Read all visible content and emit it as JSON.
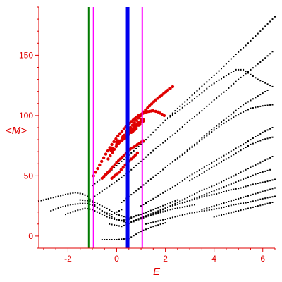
{
  "chart_data": {
    "type": "scatter",
    "title": "",
    "xlabel": "E",
    "ylabel": "<M>",
    "xlim": [
      -3.2,
      6.5
    ],
    "ylim": [
      -10,
      190
    ],
    "x_ticks": [
      -2,
      0,
      2,
      4,
      6
    ],
    "y_ticks": [
      0,
      50,
      100,
      150
    ],
    "grid": false,
    "legend": "none",
    "colors": {
      "axis": "#e00000",
      "black_points": "#000000",
      "red_points": "#e00000",
      "line_green": "#007a00",
      "line_magenta": "#ff00ff",
      "line_blue": "#0000ee"
    },
    "vertical_lines": [
      {
        "x": -1.15,
        "color": "#007a00",
        "width": 2
      },
      {
        "x": -0.95,
        "color": "#ff00ff",
        "width": 2
      },
      {
        "x": 0.45,
        "color": "#0000ee",
        "width": 5
      },
      {
        "x": 1.05,
        "color": "#ff00ff",
        "width": 2
      }
    ],
    "black_series": [
      [
        [
          -3.2,
          29
        ],
        [
          -2.8,
          31
        ],
        [
          -2.4,
          33
        ],
        [
          -2.0,
          35
        ],
        [
          -1.7,
          36
        ],
        [
          -1.4,
          35
        ],
        [
          -1.2,
          33
        ],
        [
          -1.0,
          28
        ],
        [
          -0.8,
          24
        ],
        [
          -0.6,
          21
        ],
        [
          -0.4,
          19
        ],
        [
          -0.2,
          18
        ],
        [
          0.0,
          20
        ],
        [
          0.2,
          22
        ]
      ],
      [
        [
          -2.7,
          21
        ],
        [
          -2.3,
          24
        ],
        [
          -1.9,
          26
        ],
        [
          -1.5,
          27
        ],
        [
          -1.2,
          27
        ],
        [
          -0.9,
          25
        ],
        [
          -0.6,
          21
        ],
        [
          -0.3,
          17
        ],
        [
          0.0,
          14
        ],
        [
          0.3,
          12
        ],
        [
          0.45,
          10
        ]
      ],
      [
        [
          -2.1,
          18
        ],
        [
          -1.7,
          21
        ],
        [
          -1.3,
          23
        ],
        [
          -1.0,
          22
        ],
        [
          -0.7,
          19
        ],
        [
          -0.4,
          16
        ],
        [
          -0.1,
          14
        ],
        [
          0.2,
          13
        ],
        [
          0.5,
          14
        ],
        [
          0.8,
          17
        ]
      ],
      [
        [
          -1.0,
          42
        ],
        [
          -0.6,
          48
        ],
        [
          -0.2,
          55
        ],
        [
          0.2,
          62
        ],
        [
          0.6,
          69
        ],
        [
          1.0,
          76
        ],
        [
          1.4,
          84
        ],
        [
          1.9,
          94
        ],
        [
          2.4,
          104
        ],
        [
          3.0,
          115
        ],
        [
          3.6,
          126
        ],
        [
          4.2,
          137
        ],
        [
          4.8,
          149
        ],
        [
          5.4,
          160
        ],
        [
          6.0,
          172
        ],
        [
          6.5,
          182
        ]
      ],
      [
        [
          -0.9,
          33
        ],
        [
          -0.4,
          40
        ],
        [
          0.1,
          47
        ],
        [
          0.6,
          55
        ],
        [
          1.0,
          62
        ],
        [
          1.5,
          71
        ],
        [
          2.0,
          79
        ],
        [
          2.5,
          87
        ],
        [
          3.0,
          96
        ],
        [
          3.5,
          104
        ],
        [
          4.0,
          113
        ],
        [
          4.5,
          121
        ],
        [
          5.0,
          130
        ],
        [
          5.5,
          138
        ],
        [
          6.0,
          146
        ],
        [
          6.4,
          153
        ]
      ],
      [
        [
          2.0,
          96
        ],
        [
          2.6,
          105
        ],
        [
          3.2,
          114
        ],
        [
          3.8,
          124
        ],
        [
          4.4,
          132
        ],
        [
          4.9,
          138
        ],
        [
          5.2,
          138
        ],
        [
          5.5,
          134
        ],
        [
          5.8,
          130
        ],
        [
          6.1,
          127
        ],
        [
          6.4,
          124
        ]
      ],
      [
        [
          0.2,
          28
        ],
        [
          0.7,
          36
        ],
        [
          1.2,
          44
        ],
        [
          1.7,
          52
        ],
        [
          2.2,
          60
        ],
        [
          2.7,
          68
        ],
        [
          3.2,
          76
        ],
        [
          3.7,
          85
        ],
        [
          4.2,
          93
        ],
        [
          4.7,
          101
        ],
        [
          5.2,
          109
        ],
        [
          5.7,
          115
        ],
        [
          6.2,
          121
        ]
      ],
      [
        [
          2.5,
          64
        ],
        [
          3.0,
          72
        ],
        [
          3.5,
          80
        ],
        [
          4.0,
          88
        ],
        [
          4.5,
          95
        ],
        [
          5.0,
          101
        ],
        [
          5.5,
          106
        ],
        [
          6.0,
          108
        ],
        [
          6.4,
          109
        ]
      ],
      [
        [
          1.0,
          25
        ],
        [
          1.5,
          31
        ],
        [
          2.0,
          37
        ],
        [
          2.5,
          43
        ],
        [
          3.0,
          50
        ],
        [
          3.5,
          56
        ],
        [
          4.0,
          62
        ],
        [
          4.5,
          68
        ],
        [
          5.0,
          74
        ],
        [
          5.5,
          80
        ],
        [
          6.0,
          86
        ],
        [
          6.4,
          90
        ]
      ],
      [
        [
          3.0,
          46
        ],
        [
          3.5,
          52
        ],
        [
          4.0,
          58
        ],
        [
          4.5,
          64
        ],
        [
          5.0,
          70
        ],
        [
          5.5,
          76
        ],
        [
          6.0,
          80
        ],
        [
          6.4,
          82
        ]
      ],
      [
        [
          1.5,
          18
        ],
        [
          2.0,
          23
        ],
        [
          2.5,
          28
        ],
        [
          3.0,
          33
        ],
        [
          3.5,
          38
        ],
        [
          4.0,
          42
        ],
        [
          4.5,
          47
        ],
        [
          5.0,
          52
        ],
        [
          5.5,
          57
        ],
        [
          6.0,
          62
        ],
        [
          6.4,
          66
        ]
      ],
      [
        [
          2.8,
          28
        ],
        [
          3.3,
          32
        ],
        [
          3.8,
          36
        ],
        [
          4.3,
          40
        ],
        [
          4.8,
          44
        ],
        [
          5.3,
          48
        ],
        [
          5.8,
          52
        ],
        [
          6.3,
          55
        ]
      ],
      [
        [
          0.6,
          12
        ],
        [
          1.1,
          16
        ],
        [
          1.6,
          20
        ],
        [
          2.1,
          24
        ],
        [
          2.6,
          27
        ],
        [
          3.1,
          30
        ],
        [
          3.6,
          33
        ],
        [
          4.1,
          35
        ],
        [
          4.6,
          38
        ],
        [
          5.1,
          40
        ],
        [
          5.6,
          43
        ],
        [
          6.1,
          45
        ],
        [
          6.5,
          47
        ]
      ],
      [
        [
          3.5,
          22
        ],
        [
          4.0,
          25
        ],
        [
          4.5,
          28
        ],
        [
          5.0,
          31
        ],
        [
          5.5,
          34
        ],
        [
          6.0,
          37
        ],
        [
          6.5,
          40
        ]
      ],
      [
        [
          1.2,
          10
        ],
        [
          1.8,
          13
        ],
        [
          2.4,
          16
        ],
        [
          3.0,
          19
        ],
        [
          3.6,
          21
        ],
        [
          4.2,
          23
        ],
        [
          4.8,
          26
        ],
        [
          5.4,
          28
        ],
        [
          6.0,
          31
        ],
        [
          6.5,
          33
        ]
      ],
      [
        [
          -0.6,
          -3
        ],
        [
          0.0,
          -3
        ],
        [
          0.5,
          -2
        ],
        [
          1.0,
          4
        ],
        [
          1.5,
          8
        ],
        [
          2.0,
          11
        ]
      ],
      [
        [
          4.0,
          16
        ],
        [
          4.6,
          19
        ],
        [
          5.2,
          22
        ],
        [
          5.8,
          25
        ],
        [
          6.4,
          28
        ]
      ],
      [
        [
          -1.5,
          30
        ],
        [
          -1.0,
          29
        ],
        [
          -0.5,
          24
        ],
        [
          0.0,
          18
        ],
        [
          0.5,
          15
        ],
        [
          1.0,
          18
        ],
        [
          1.5,
          22
        ],
        [
          2.0,
          26
        ],
        [
          2.5,
          30
        ]
      ],
      [
        [
          -0.3,
          10
        ],
        [
          0.2,
          8
        ],
        [
          0.7,
          12
        ],
        [
          1.2,
          16
        ],
        [
          1.7,
          19
        ],
        [
          2.2,
          22
        ],
        [
          2.7,
          24
        ],
        [
          3.2,
          26
        ]
      ]
    ],
    "red_series": [
      [
        [
          -0.95,
          50
        ],
        [
          -0.7,
          59
        ],
        [
          -0.45,
          68
        ],
        [
          -0.2,
          76
        ],
        [
          0.05,
          83
        ],
        [
          0.3,
          89
        ],
        [
          0.6,
          95
        ],
        [
          0.9,
          100
        ],
        [
          1.2,
          103
        ],
        [
          1.5,
          104
        ],
        [
          1.7,
          103
        ],
        [
          1.95,
          100
        ]
      ],
      [
        [
          -0.35,
          64
        ],
        [
          -0.1,
          72
        ],
        [
          0.15,
          79
        ],
        [
          0.4,
          86
        ],
        [
          0.65,
          92
        ],
        [
          0.9,
          98
        ],
        [
          1.1,
          103
        ],
        [
          1.35,
          108
        ],
        [
          1.6,
          113
        ],
        [
          1.85,
          117
        ],
        [
          2.1,
          121
        ],
        [
          2.3,
          124
        ]
      ],
      [
        [
          -0.6,
          48
        ],
        [
          -0.3,
          54
        ],
        [
          0.0,
          61
        ],
        [
          0.3,
          67
        ],
        [
          0.55,
          72
        ],
        [
          0.85,
          76
        ],
        [
          1.1,
          79
        ]
      ],
      [
        [
          -0.2,
          48
        ],
        [
          0.1,
          53
        ],
        [
          0.35,
          59
        ],
        [
          0.6,
          64
        ],
        [
          0.85,
          69
        ]
      ],
      [
        [
          0.0,
          76
        ],
        [
          0.2,
          79
        ],
        [
          0.4,
          83
        ],
        [
          0.6,
          86
        ],
        [
          0.8,
          89
        ]
      ]
    ],
    "red_large_points": [
      [
        -0.2,
        72
      ],
      [
        0.05,
        78
      ],
      [
        0.3,
        82
      ],
      [
        0.45,
        86
      ],
      [
        0.6,
        88
      ],
      [
        0.75,
        91
      ],
      [
        0.9,
        93
      ],
      [
        1.05,
        96
      ]
    ]
  }
}
